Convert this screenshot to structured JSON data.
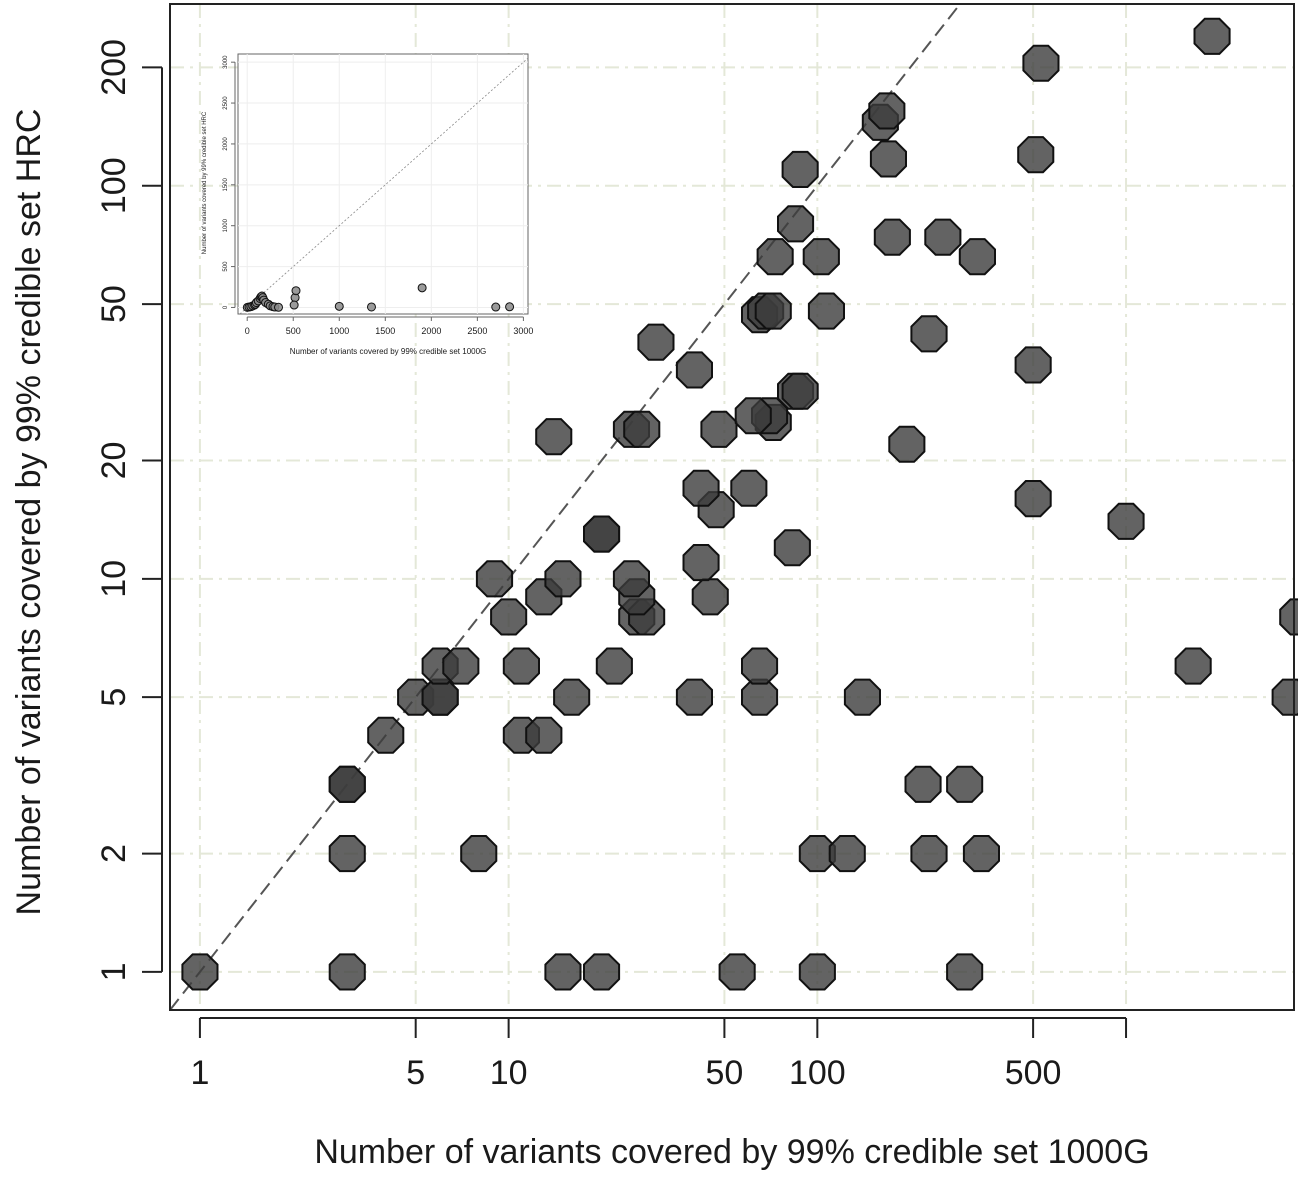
{
  "chart_data": [
    {
      "type": "scatter",
      "title": "",
      "xlabel": "Number of variants covered by 99% credible set 1000G",
      "ylabel": "Number of variants covered by 99% credible set HRC",
      "x_scale": "log",
      "y_scale": "log",
      "xlim": [
        0.8,
        3500
      ],
      "ylim": [
        0.8,
        290
      ],
      "x_ticks": [
        1,
        5,
        10,
        50,
        100,
        500,
        1000
      ],
      "x_tick_labels": [
        "1",
        "5",
        "10",
        "50",
        "100",
        "500",
        ""
      ],
      "y_ticks": [
        1,
        2,
        5,
        10,
        20,
        50,
        100,
        200
      ],
      "y_tick_labels": [
        "1",
        "2",
        "5",
        "10",
        "20",
        "50",
        "100",
        "200"
      ],
      "reference_line": "y = x",
      "grid": true,
      "legend": "none",
      "points": [
        [
          1,
          1
        ],
        [
          3,
          1
        ],
        [
          15,
          1
        ],
        [
          20,
          1
        ],
        [
          55,
          1
        ],
        [
          100,
          1
        ],
        [
          300,
          1
        ],
        [
          3,
          2
        ],
        [
          8,
          2
        ],
        [
          100,
          2
        ],
        [
          125,
          2
        ],
        [
          230,
          2
        ],
        [
          340,
          2
        ],
        [
          3,
          3
        ],
        [
          3,
          3
        ],
        [
          220,
          3
        ],
        [
          300,
          3
        ],
        [
          4,
          4
        ],
        [
          11,
          4
        ],
        [
          13,
          4
        ],
        [
          5,
          5
        ],
        [
          6,
          5
        ],
        [
          6,
          5
        ],
        [
          16,
          5
        ],
        [
          40,
          5
        ],
        [
          65,
          5
        ],
        [
          140,
          5
        ],
        [
          3400,
          5
        ],
        [
          6,
          6
        ],
        [
          7,
          6
        ],
        [
          11,
          6
        ],
        [
          22,
          6
        ],
        [
          65,
          6
        ],
        [
          1650,
          6
        ],
        [
          10,
          8
        ],
        [
          26,
          8
        ],
        [
          28,
          8
        ],
        [
          3600,
          8
        ],
        [
          13,
          9
        ],
        [
          26,
          9
        ],
        [
          45,
          9
        ],
        [
          9,
          10
        ],
        [
          15,
          10
        ],
        [
          25,
          10
        ],
        [
          42,
          11
        ],
        [
          83,
          12
        ],
        [
          20,
          13
        ],
        [
          20,
          13
        ],
        [
          1000,
          14
        ],
        [
          47,
          15
        ],
        [
          42,
          17
        ],
        [
          60,
          17
        ],
        [
          195,
          22
        ],
        [
          14,
          23
        ],
        [
          25,
          24
        ],
        [
          27,
          24
        ],
        [
          48,
          24
        ],
        [
          72,
          25
        ],
        [
          70,
          26
        ],
        [
          62,
          26
        ],
        [
          85,
          30
        ],
        [
          88,
          30
        ],
        [
          40,
          34
        ],
        [
          500,
          35
        ],
        [
          30,
          40
        ],
        [
          230,
          42
        ],
        [
          500,
          16
        ],
        [
          1900,
          240
        ],
        [
          65,
          47
        ],
        [
          68,
          48
        ],
        [
          72,
          48
        ],
        [
          107,
          48
        ],
        [
          103,
          66
        ],
        [
          73,
          66
        ],
        [
          330,
          66
        ],
        [
          175,
          74
        ],
        [
          255,
          74
        ],
        [
          85,
          80
        ],
        [
          170,
          117
        ],
        [
          88,
          110
        ],
        [
          510,
          120
        ],
        [
          160,
          145
        ],
        [
          168,
          155
        ],
        [
          530,
          205
        ]
      ]
    },
    {
      "type": "scatter",
      "title": "",
      "xlabel": "Number of variants covered by 99% credible set 1000G",
      "ylabel": "Number of variants covered by 99% credible set HRC",
      "x_scale": "linear",
      "y_scale": "linear",
      "xlim": [
        -100,
        3050
      ],
      "ylim": [
        -80,
        3100
      ],
      "x_ticks": [
        0,
        500,
        1000,
        1500,
        2000,
        2500,
        3000
      ],
      "x_tick_labels": [
        "0",
        "500",
        "1000",
        "1500",
        "2000",
        "2500",
        "3000"
      ],
      "y_ticks": [
        0,
        500,
        1000,
        1500,
        2000,
        2500,
        3000
      ],
      "y_tick_labels": [
        "0",
        "500",
        "1000",
        "1500",
        "2000",
        "2500",
        "3000"
      ],
      "reference_line": "y = x",
      "grid": true,
      "legend": "none",
      "points": [
        [
          1,
          1
        ],
        [
          20,
          5
        ],
        [
          40,
          10
        ],
        [
          60,
          20
        ],
        [
          80,
          30
        ],
        [
          90,
          40
        ],
        [
          100,
          60
        ],
        [
          120,
          80
        ],
        [
          140,
          110
        ],
        [
          150,
          130
        ],
        [
          160,
          140
        ],
        [
          170,
          120
        ],
        [
          180,
          90
        ],
        [
          200,
          60
        ],
        [
          230,
          40
        ],
        [
          250,
          20
        ],
        [
          280,
          10
        ],
        [
          300,
          5
        ],
        [
          340,
          2
        ],
        [
          520,
          120
        ],
        [
          530,
          205
        ],
        [
          510,
          30
        ],
        [
          1000,
          14
        ],
        [
          1350,
          6
        ],
        [
          1900,
          240
        ],
        [
          2700,
          5
        ],
        [
          2850,
          8
        ]
      ]
    }
  ]
}
